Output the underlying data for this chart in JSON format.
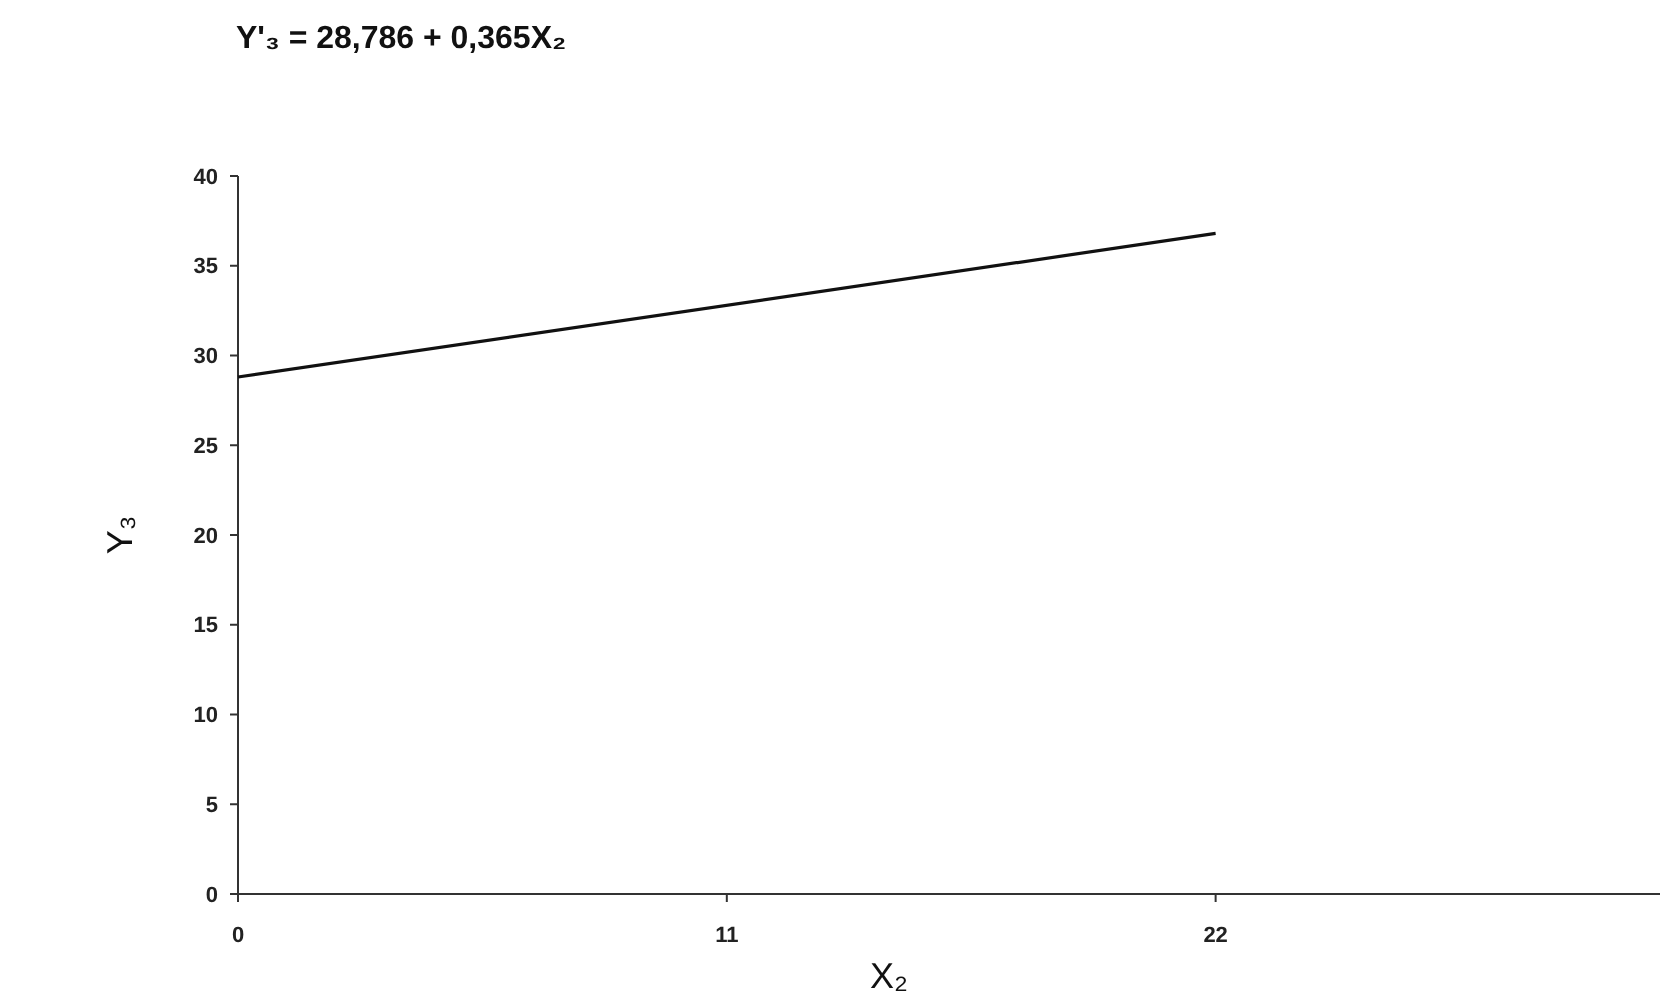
{
  "chart_data": {
    "type": "line",
    "title": "Y'₃ = 28,786 + 0,365X₂",
    "xlabel": "X₂",
    "ylabel": "Y₃",
    "x": [
      0,
      22
    ],
    "series": [
      {
        "color": "#111111",
        "values": [
          28.8,
          36.8
        ]
      }
    ],
    "xlim": [
      0,
      32
    ],
    "xticks": [
      0,
      11,
      22
    ],
    "ylim": [
      0,
      40
    ],
    "yticks": [
      0,
      5,
      10,
      15,
      20,
      25,
      30,
      35,
      40
    ],
    "grid": false,
    "marker": "none",
    "line_style": "solid"
  }
}
